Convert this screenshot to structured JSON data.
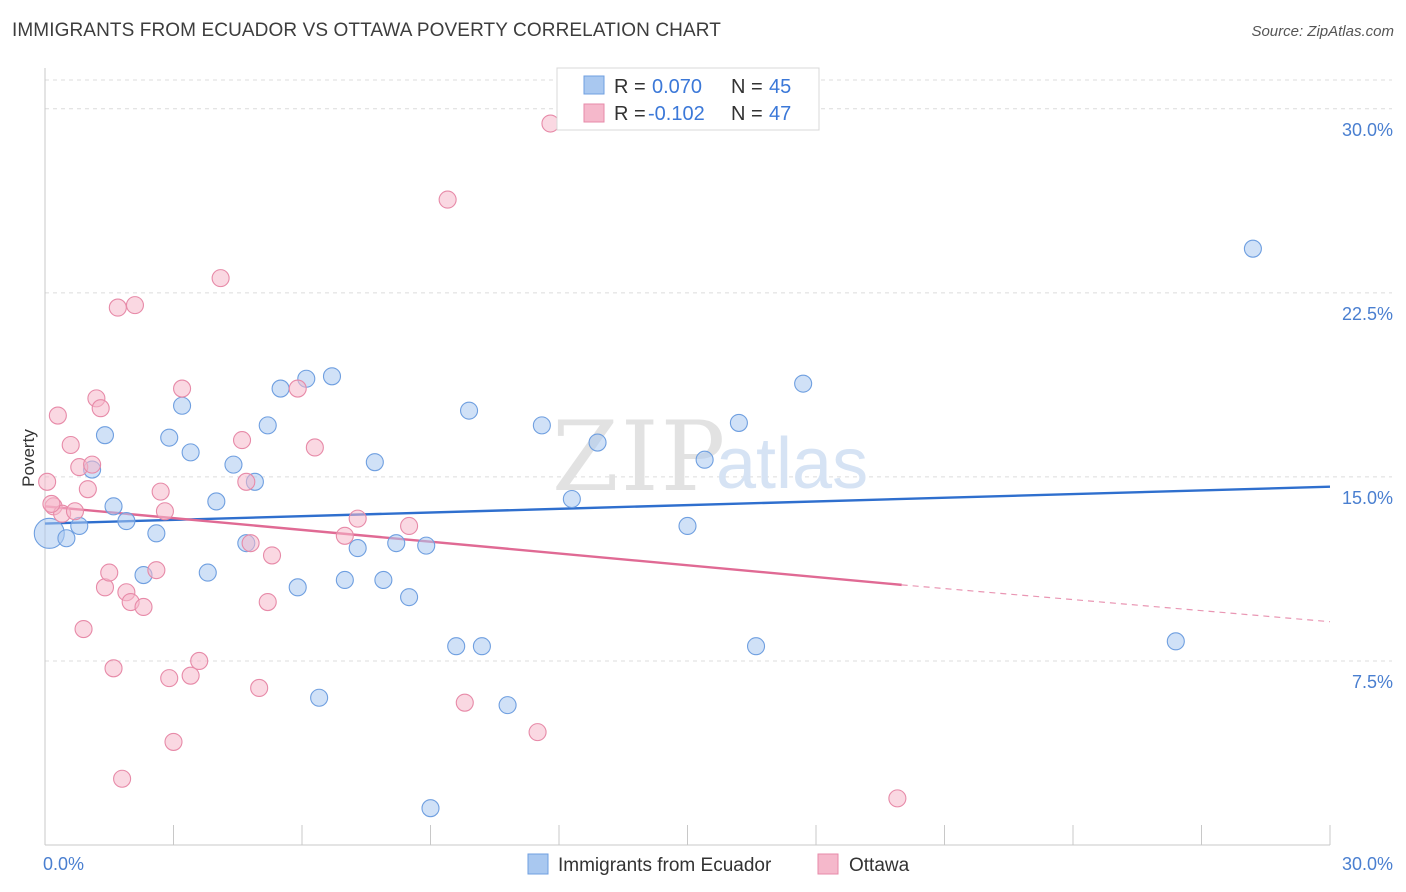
{
  "title": "IMMIGRANTS FROM ECUADOR VS OTTAWA POVERTY CORRELATION CHART",
  "source": "Source: ZipAtlas.com",
  "watermark": {
    "zip": "ZIP",
    "atlas": "atlas"
  },
  "legend": {
    "rows": [
      {
        "r_label": "R =",
        "r_value": "0.070",
        "n_label": "N =",
        "n_value": "45",
        "color": "#a9c8f0"
      },
      {
        "r_label": "R =",
        "r_value": "-0.102",
        "n_label": "N =",
        "n_value": "47",
        "color": "#f5b8cb"
      }
    ]
  },
  "bottom_legend": [
    {
      "label": "Immigrants from Ecuador",
      "color": "#a9c8f0"
    },
    {
      "label": "Ottawa",
      "color": "#f5b8cb"
    }
  ],
  "chart_data": {
    "type": "scatter",
    "title": "IMMIGRANTS FROM ECUADOR VS OTTAWA POVERTY CORRELATION CHART",
    "xlabel": "",
    "ylabel": "Poverty",
    "xlim": [
      0,
      30
    ],
    "ylim": [
      0,
      31.5
    ],
    "x_tick_labels": [
      {
        "value": 0,
        "label": "0.0%"
      },
      {
        "value": 30,
        "label": "30.0%"
      }
    ],
    "y_tick_labels": [
      {
        "value": 7.5,
        "label": "7.5%"
      },
      {
        "value": 15,
        "label": "15.0%"
      },
      {
        "value": 22.5,
        "label": "22.5%"
      },
      {
        "value": 30,
        "label": "30.0%"
      }
    ],
    "grid": true,
    "legend_position": "top-center",
    "series": [
      {
        "name": "Immigrants from Ecuador",
        "color": "#a9c8f0",
        "stroke": "#6f9fe0",
        "trend_color": "#2f6fce",
        "trend": {
          "x0": 0,
          "y0": 13.1,
          "x1": 30,
          "y1": 14.6
        },
        "points": [
          {
            "x": 0.1,
            "y": 12.7,
            "big": true
          },
          {
            "x": 0.5,
            "y": 12.5
          },
          {
            "x": 0.8,
            "y": 13.0
          },
          {
            "x": 1.1,
            "y": 15.3
          },
          {
            "x": 1.4,
            "y": 16.7
          },
          {
            "x": 1.6,
            "y": 13.8
          },
          {
            "x": 1.9,
            "y": 13.2
          },
          {
            "x": 2.3,
            "y": 11.0
          },
          {
            "x": 2.6,
            "y": 12.7
          },
          {
            "x": 2.9,
            "y": 16.6
          },
          {
            "x": 3.2,
            "y": 17.9
          },
          {
            "x": 3.4,
            "y": 16.0
          },
          {
            "x": 3.8,
            "y": 11.1
          },
          {
            "x": 4.0,
            "y": 14.0
          },
          {
            "x": 4.4,
            "y": 15.5
          },
          {
            "x": 4.7,
            "y": 12.3
          },
          {
            "x": 4.9,
            "y": 14.8
          },
          {
            "x": 5.2,
            "y": 17.1
          },
          {
            "x": 5.5,
            "y": 18.6
          },
          {
            "x": 5.9,
            "y": 10.5
          },
          {
            "x": 6.1,
            "y": 19.0
          },
          {
            "x": 6.4,
            "y": 6.0
          },
          {
            "x": 6.7,
            "y": 19.1
          },
          {
            "x": 7.0,
            "y": 10.8
          },
          {
            "x": 7.3,
            "y": 12.1
          },
          {
            "x": 7.7,
            "y": 15.6
          },
          {
            "x": 7.9,
            "y": 10.8
          },
          {
            "x": 8.2,
            "y": 12.3
          },
          {
            "x": 8.5,
            "y": 10.1
          },
          {
            "x": 8.9,
            "y": 12.2
          },
          {
            "x": 9.0,
            "y": 1.5
          },
          {
            "x": 9.6,
            "y": 8.1
          },
          {
            "x": 9.9,
            "y": 17.7
          },
          {
            "x": 10.2,
            "y": 8.1
          },
          {
            "x": 10.8,
            "y": 5.7
          },
          {
            "x": 11.6,
            "y": 17.1
          },
          {
            "x": 12.3,
            "y": 14.1
          },
          {
            "x": 12.9,
            "y": 16.4
          },
          {
            "x": 15.0,
            "y": 13.0
          },
          {
            "x": 15.4,
            "y": 15.7
          },
          {
            "x": 16.2,
            "y": 17.2
          },
          {
            "x": 16.6,
            "y": 8.1
          },
          {
            "x": 17.7,
            "y": 18.8
          },
          {
            "x": 26.4,
            "y": 8.3
          },
          {
            "x": 28.2,
            "y": 24.3
          }
        ]
      },
      {
        "name": "Ottawa",
        "color": "#f5b8cb",
        "stroke": "#e78aa8",
        "trend_color": "#e06a94",
        "trend": {
          "x0": 0,
          "y0": 13.8,
          "x1": 20,
          "y1": 10.6,
          "dash_x1": 30,
          "dash_y1": 9.1
        },
        "points": [
          {
            "x": 0.05,
            "y": 14.8
          },
          {
            "x": 0.2,
            "y": 13.8
          },
          {
            "x": 0.3,
            "y": 17.5
          },
          {
            "x": 0.4,
            "y": 13.5
          },
          {
            "x": 0.6,
            "y": 16.3
          },
          {
            "x": 0.7,
            "y": 13.6
          },
          {
            "x": 0.8,
            "y": 15.4
          },
          {
            "x": 0.9,
            "y": 8.8
          },
          {
            "x": 1.0,
            "y": 14.5
          },
          {
            "x": 1.1,
            "y": 15.5
          },
          {
            "x": 1.2,
            "y": 18.2
          },
          {
            "x": 1.3,
            "y": 17.8
          },
          {
            "x": 1.4,
            "y": 10.5
          },
          {
            "x": 1.5,
            "y": 11.1
          },
          {
            "x": 1.6,
            "y": 7.2
          },
          {
            "x": 1.7,
            "y": 21.9
          },
          {
            "x": 1.8,
            "y": 2.7
          },
          {
            "x": 1.9,
            "y": 10.3
          },
          {
            "x": 2.0,
            "y": 9.9
          },
          {
            "x": 2.1,
            "y": 22.0
          },
          {
            "x": 2.3,
            "y": 9.7
          },
          {
            "x": 2.6,
            "y": 11.2
          },
          {
            "x": 2.7,
            "y": 14.4
          },
          {
            "x": 2.8,
            "y": 13.6
          },
          {
            "x": 2.9,
            "y": 6.8
          },
          {
            "x": 3.0,
            "y": 4.2
          },
          {
            "x": 3.2,
            "y": 18.6
          },
          {
            "x": 3.4,
            "y": 6.9
          },
          {
            "x": 3.6,
            "y": 7.5
          },
          {
            "x": 4.1,
            "y": 23.1
          },
          {
            "x": 4.6,
            "y": 16.5
          },
          {
            "x": 4.7,
            "y": 14.8
          },
          {
            "x": 4.8,
            "y": 12.3
          },
          {
            "x": 5.0,
            "y": 6.4
          },
          {
            "x": 5.2,
            "y": 9.9
          },
          {
            "x": 5.3,
            "y": 11.8
          },
          {
            "x": 5.9,
            "y": 18.6
          },
          {
            "x": 6.3,
            "y": 16.2
          },
          {
            "x": 7.0,
            "y": 12.6
          },
          {
            "x": 7.3,
            "y": 13.3
          },
          {
            "x": 8.5,
            "y": 13.0
          },
          {
            "x": 9.4,
            "y": 26.3
          },
          {
            "x": 9.8,
            "y": 5.8
          },
          {
            "x": 11.5,
            "y": 4.6
          },
          {
            "x": 11.8,
            "y": 29.4
          },
          {
            "x": 19.9,
            "y": 1.9
          },
          {
            "x": 0.15,
            "y": 13.9
          }
        ]
      }
    ]
  }
}
